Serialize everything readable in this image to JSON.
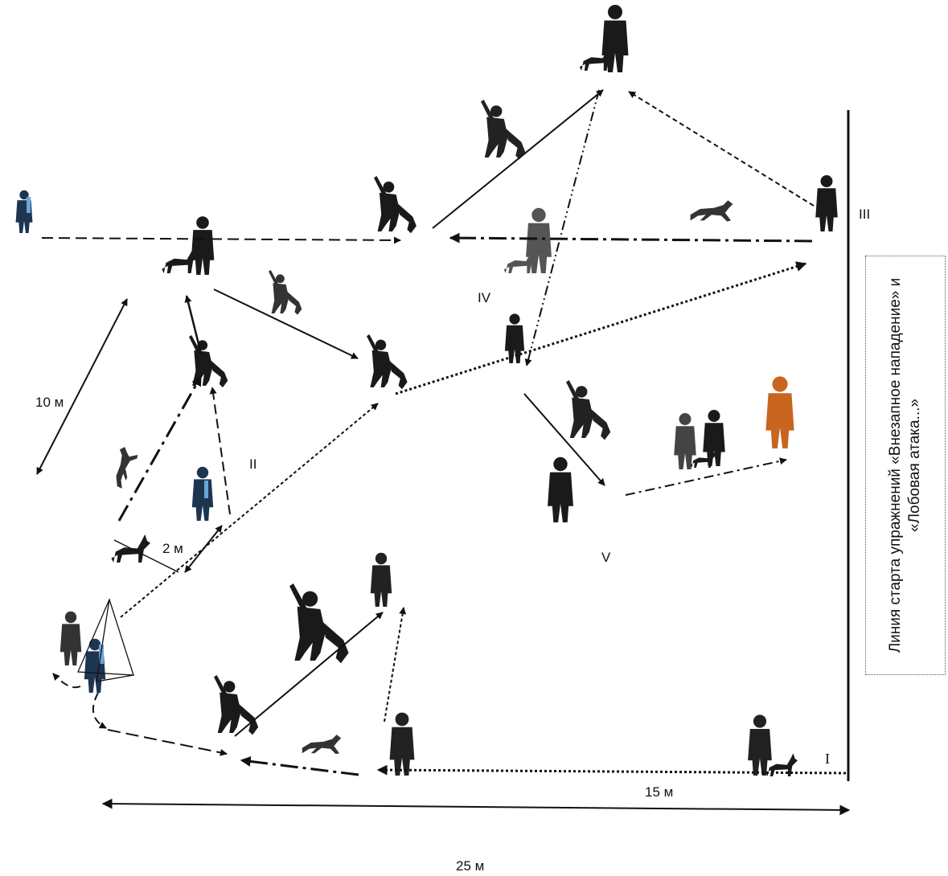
{
  "labels": {
    "zone_i": "I",
    "zone_ii": "II",
    "zone_iii": "III",
    "zone_iv": "IV",
    "zone_v": "V",
    "dist_10m": "10 м",
    "dist_2m": "2 м",
    "dist_15m": "15 м",
    "dist_25m": "25 м"
  },
  "start_line_caption": "Линия старта упражнений «Внезапное нападение» и «Лобовая атака...»",
  "colors": {
    "ink": "#111111",
    "figure": "#1a1a1a",
    "figure_grey": "#555555",
    "figure_blue": "#1e3552",
    "figure_blue_accent": "#6aa6d6",
    "figure_orange": "#c8651e"
  }
}
